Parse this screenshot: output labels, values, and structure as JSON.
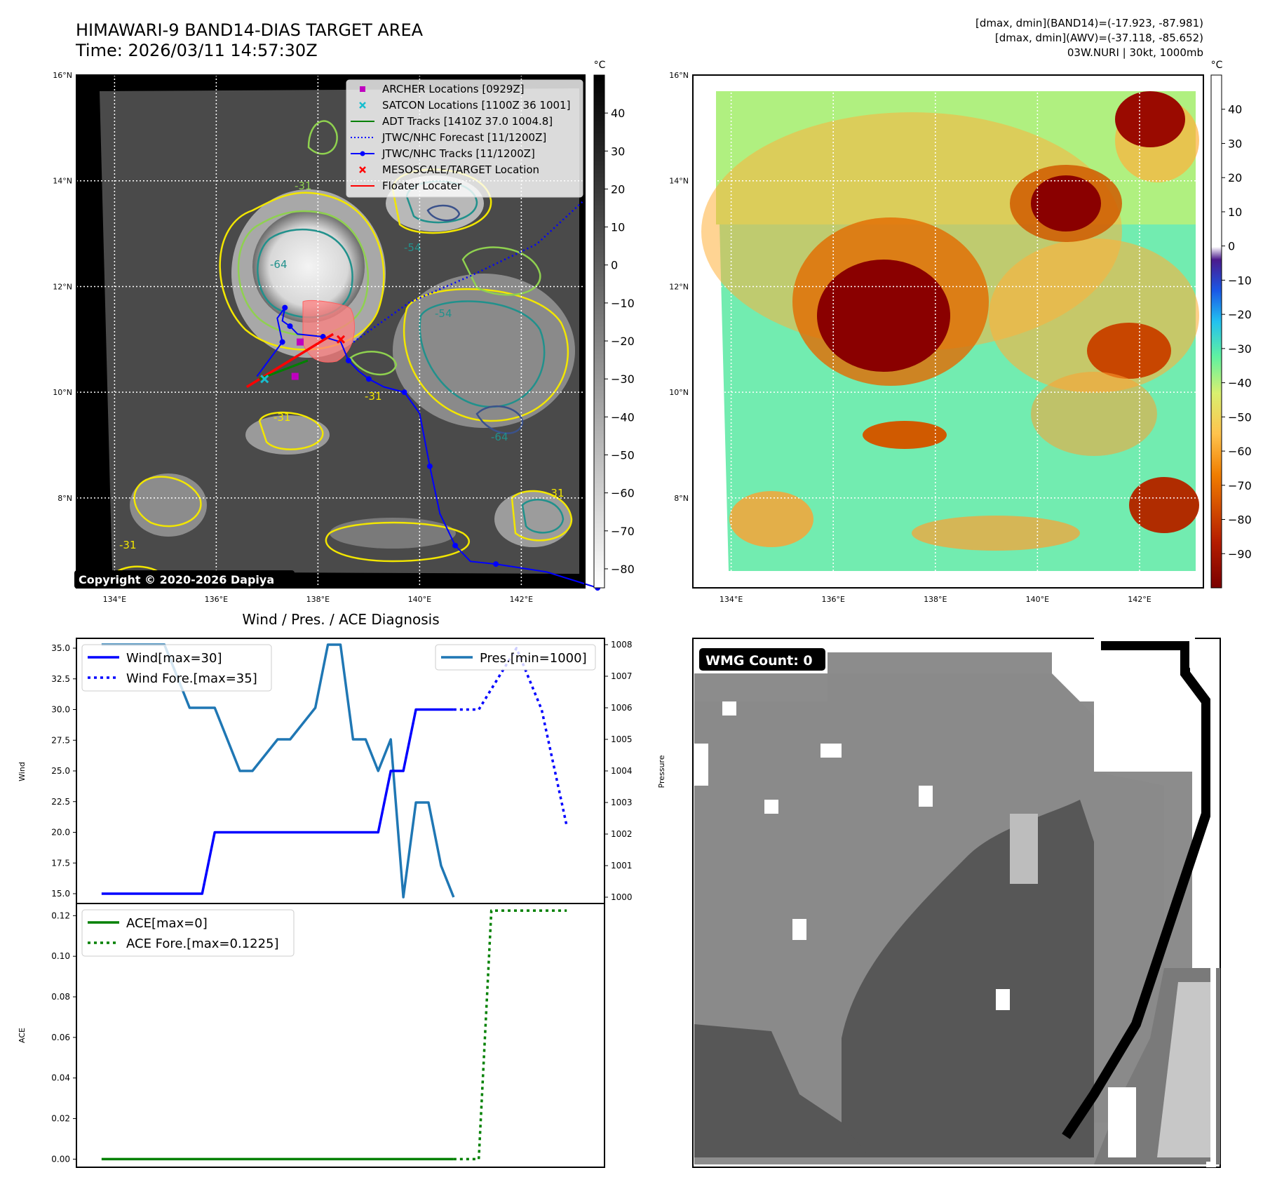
{
  "header": {
    "title": "HIMAWARI-9 BAND14-DIAS TARGET AREA",
    "time": "Time: 2026/03/11 14:57:30Z",
    "info_line1": "[dmax, dmin](BAND14)=(-17.923, -87.981)",
    "info_line2": "[dmax, dmin](AWV)=(-37.118, -85.652)",
    "info_line3": "03W.NURI | 30kt, 1000mb",
    "copyright": "Copyright © 2020-2026 Dapiya"
  },
  "colors": {
    "wind": "#0000ff",
    "pressure": "#1f77b4",
    "ace": "#008000",
    "archer": "#bf00bf",
    "satcon": "#17becf",
    "adt": "#008000",
    "target": "#ff0000",
    "contour_yellow": "#f2e600",
    "contour_green": "#8fd14f",
    "contour_teal": "#21918c",
    "contour_navy": "#3b528b"
  },
  "map_axes": {
    "lat_labels": [
      "16°N",
      "14°N",
      "12°N",
      "10°N",
      "8°N"
    ],
    "lon_labels": [
      "134°E",
      "136°E",
      "138°E",
      "140°E",
      "142°E"
    ],
    "lat_values": [
      16,
      14,
      12,
      10,
      8
    ],
    "lon_values": [
      134,
      136,
      138,
      140,
      142
    ],
    "lon_range": [
      133.25,
      143.25
    ],
    "lat_range": [
      6.3,
      16.0
    ]
  },
  "ir_panel": {
    "contour_labels": [
      "-64",
      "-54",
      "-31",
      "-31",
      "-64",
      "-54",
      "-31",
      "-31",
      "-31"
    ],
    "legend": [
      {
        "label": "ARCHER Locations [0929Z]",
        "icon": "square-marker"
      },
      {
        "label": "SATCON Locations [1100Z 36 1001]",
        "icon": "x-marker"
      },
      {
        "label": "ADT Tracks [1410Z 37.0 1004.8]",
        "icon": "solid-line"
      },
      {
        "label": "JTWC/NHC Forecast [11/1200Z]",
        "icon": "dotted-line"
      },
      {
        "label": "JTWC/NHC Tracks [11/1200Z]",
        "icon": "line-dot"
      },
      {
        "label": "MESOSCALE/TARGET Location",
        "icon": "x-marker"
      },
      {
        "label": "Floater Locater",
        "icon": "solid-line"
      }
    ],
    "colorbar": {
      "unit": "°C",
      "ticks": [
        "40",
        "30",
        "20",
        "10",
        "0",
        "−10",
        "−20",
        "−30",
        "−40",
        "−50",
        "−60",
        "−70",
        "−80"
      ],
      "tick_values": [
        40,
        30,
        20,
        10,
        0,
        -10,
        -20,
        -30,
        -40,
        -50,
        -60,
        -70,
        -80
      ],
      "range": [
        -85,
        50
      ]
    }
  },
  "wv_panel": {
    "colorbar": {
      "unit": "°C",
      "ticks": [
        "40",
        "30",
        "20",
        "10",
        "0",
        "−10",
        "−20",
        "−30",
        "−40",
        "−50",
        "−60",
        "−70",
        "−80",
        "−90"
      ],
      "tick_values": [
        40,
        30,
        20,
        10,
        0,
        -10,
        -20,
        -30,
        -40,
        -50,
        -60,
        -70,
        -80,
        -90
      ],
      "range": [
        -100,
        50
      ]
    }
  },
  "diagnosis": {
    "title": "Wind / Pres. / ACE Diagnosis",
    "ylabel_wind": "Wind",
    "ylabel_pressure": "Pressure",
    "ylabel_ace": "ACE",
    "legend_wind": "Wind[max=30]",
    "legend_wind_fore": "Wind Fore.[max=35]",
    "legend_pres": "Pres.[min=1000]",
    "legend_ace": "ACE[max=0]",
    "legend_ace_fore": "ACE Fore.[max=0.1225]",
    "wind_ticks": [
      "35.0",
      "32.5",
      "30.0",
      "27.5",
      "25.0",
      "22.5",
      "20.0",
      "17.5",
      "15.0"
    ],
    "pres_ticks": [
      "1008",
      "1007",
      "1006",
      "1005",
      "1004",
      "1003",
      "1002",
      "1001",
      "1000"
    ],
    "ace_ticks": [
      "0.12",
      "0.10",
      "0.08",
      "0.06",
      "0.04",
      "0.02",
      "0.00"
    ]
  },
  "wmg": {
    "label": "WMG Count: 0"
  },
  "chart_data": [
    {
      "type": "line",
      "title": "Wind / Pres. / ACE Diagnosis",
      "ylabel": "Wind",
      "ylim": [
        14.2,
        35.8
      ],
      "x": [
        0,
        1,
        2,
        3,
        4,
        5,
        6,
        7,
        8,
        9,
        10,
        11,
        12,
        13,
        14,
        15,
        16,
        17,
        18,
        19,
        20,
        21,
        22,
        23,
        24,
        25,
        26,
        27,
        28,
        29,
        30,
        31,
        32,
        33,
        34,
        35,
        36,
        37,
        38
      ],
      "series": [
        {
          "name": "Wind[max=30]",
          "axis": "left",
          "x": [
            0,
            8,
            9,
            22,
            23,
            24,
            25,
            28
          ],
          "values": [
            15,
            15,
            20,
            20,
            25,
            25,
            30,
            30
          ]
        },
        {
          "name": "Wind Fore.[max=35]",
          "axis": "left",
          "style": "dotted",
          "x": [
            28,
            30,
            33,
            35,
            37
          ],
          "values": [
            30,
            30,
            35,
            30,
            20.5
          ]
        },
        {
          "name": "Pres.[min=1000]",
          "axis": "right",
          "ylabel": "Pressure",
          "ylim": [
            999.8,
            1008.2
          ],
          "x": [
            0,
            5,
            7,
            9,
            11,
            12,
            14,
            15,
            17,
            18,
            19,
            20,
            21,
            22,
            23,
            24,
            25,
            26,
            27,
            28
          ],
          "values": [
            1008,
            1008,
            1006,
            1006,
            1004,
            1004,
            1005,
            1005,
            1006,
            1008,
            1008,
            1005,
            1005,
            1004,
            1005,
            1000,
            1003,
            1003,
            1001,
            1000
          ]
        }
      ]
    },
    {
      "type": "line",
      "ylabel": "ACE",
      "ylim": [
        -0.004,
        0.126
      ],
      "series": [
        {
          "name": "ACE[max=0]",
          "x": [
            0,
            28
          ],
          "values": [
            0,
            0
          ]
        },
        {
          "name": "ACE Fore.[max=0.1225]",
          "style": "dotted",
          "x": [
            28,
            30,
            31,
            37
          ],
          "values": [
            0,
            0,
            0.1225,
            0.1225
          ]
        }
      ]
    }
  ]
}
